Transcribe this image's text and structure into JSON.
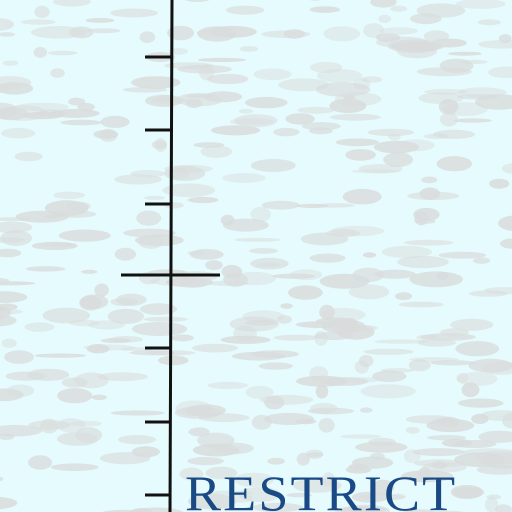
{
  "map": {
    "background_color": "#e6fbfd",
    "texture_color": "#d9dcdc",
    "line_color": "#111111",
    "label_color": "#1a4a86",
    "area_label": "RESTRICT"
  }
}
